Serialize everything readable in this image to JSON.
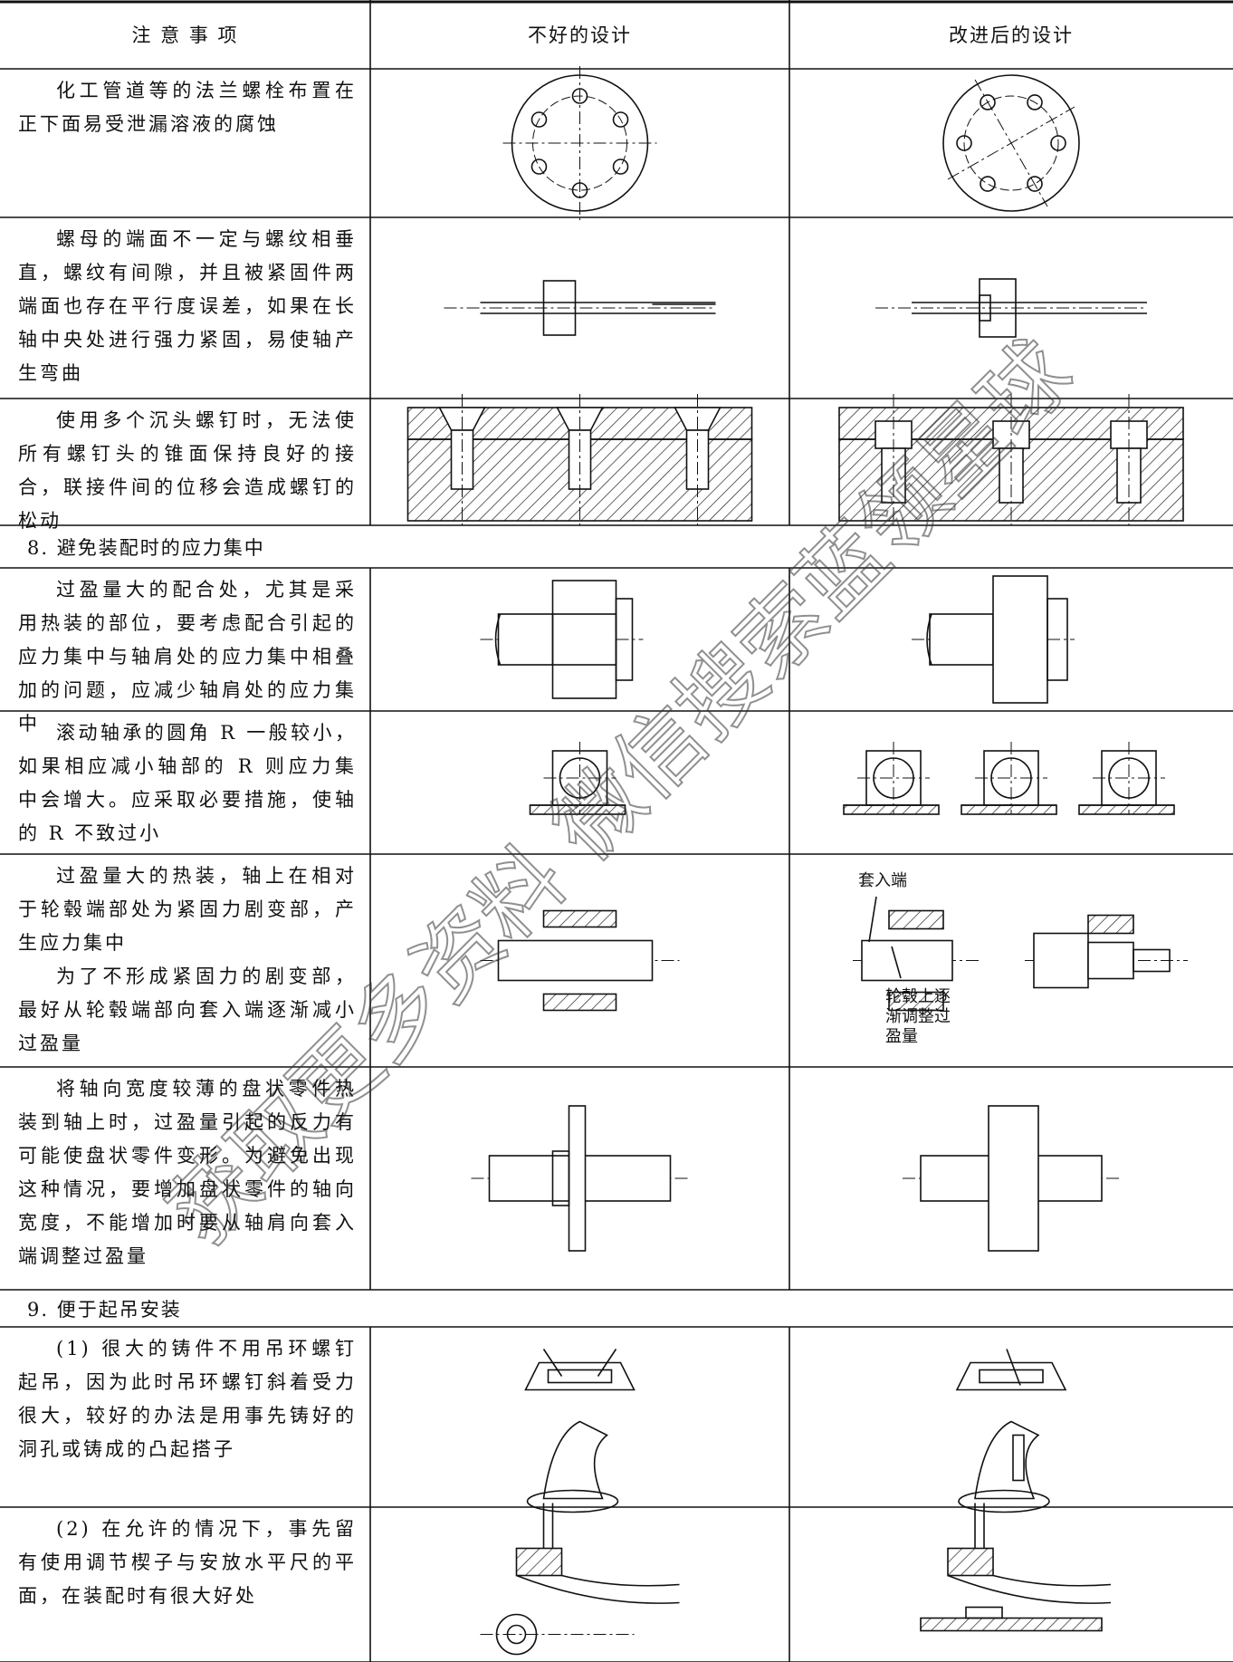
{
  "table": {
    "headers": [
      "注 意 事 项",
      "不好的设计",
      "改进后的设计"
    ],
    "rows": [
      {
        "paragraphs": [
          "化工管道等的法兰螺栓布置在正下面易受泄漏溶液的腐蚀"
        ]
      },
      {
        "paragraphs": [
          "螺母的端面不一定与螺纹相垂直，螺纹有间隙，并且被紧固件两端面也存在平行度误差，如果在长轴中央处进行强力紧固，易使轴产生弯曲"
        ]
      },
      {
        "paragraphs": [
          "使用多个沉头螺钉时，无法使所有螺钉头的锥面保持良好的接合，联接件间的位移会造成螺钉的松动"
        ]
      },
      {
        "section": "8. 避免装配时的应力集中"
      },
      {
        "paragraphs": [
          "过盈量大的配合处，尤其是采用热装的部位，要考虑配合引起的应力集中与轴肩处的应力集中相叠加的问题，应减少轴肩处的应力集中"
        ]
      },
      {
        "paragraphs": [
          "滚动轴承的圆角 R 一般较小，如果相应减小轴部的 R 则应力集中会增大。应采取必要措施，使轴的 R 不致过小"
        ]
      },
      {
        "paragraphs": [
          "过盈量大的热装，轴上在相对于轮毂端部处为紧固力剧变部，产生应力集中",
          "为了不形成紧固力的剧变部，最好从轮毂端部向套入端逐渐减小过盈量"
        ]
      },
      {
        "paragraphs": [
          "将轴向宽度较薄的盘状零件热装到轴上时，过盈量引起的反力有可能使盘状零件变形。为避免出现这种情况，要增加盘状零件的轴向宽度，不能增加时要从轴肩向套入端调整过盈量"
        ]
      },
      {
        "section": "9. 便于起吊安装"
      },
      {
        "paragraphs": [
          "(1) 很大的铸件不用吊环螺钉起吊，因为此时吊环螺钉斜着受力很大，较好的办法是用事先铸好的洞孔或铸成的凸起搭子"
        ]
      },
      {
        "paragraphs": [
          "(2) 在允许的情况下，事先留有使用调节楔子与安放水平尺的平面，在装配时有很大好处"
        ]
      }
    ]
  },
  "figure_labels": [
    "套入端",
    "轮毂上逐渐调整过盈量"
  ],
  "watermark": "获取更多资料 微信搜索蓝领星球"
}
